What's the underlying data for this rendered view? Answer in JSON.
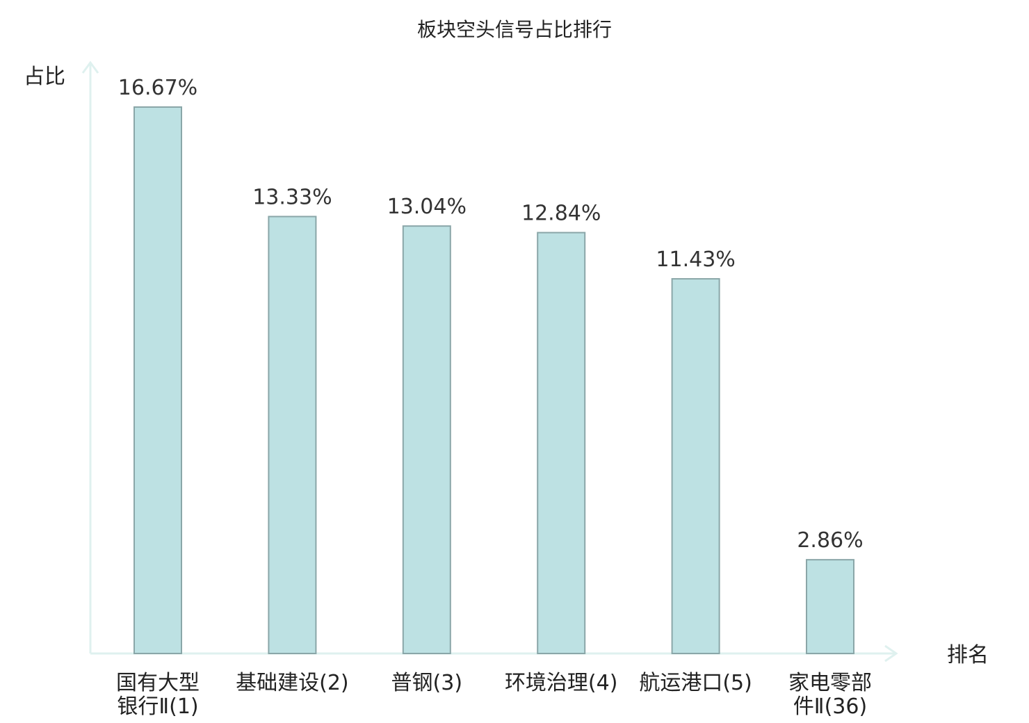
{
  "chart_data": {
    "type": "bar",
    "title": "板块空头信号占比排行",
    "ylabel": "占比",
    "xlabel": "排名",
    "categories": [
      [
        "国有大型",
        "银行Ⅱ(1)"
      ],
      [
        "基础建设(2)"
      ],
      [
        "普钢(3)"
      ],
      [
        "环境治理(4)"
      ],
      [
        "航运港口(5)"
      ],
      [
        "家电零部",
        "件Ⅱ(36)"
      ]
    ],
    "values": [
      16.67,
      13.33,
      13.04,
      12.84,
      11.43,
      2.86
    ],
    "value_labels": [
      "16.67%",
      "13.33%",
      "13.04%",
      "12.84%",
      "11.43%",
      "2.86%"
    ],
    "highlight_index": 5,
    "ylim": [
      0,
      18
    ],
    "grid": false
  },
  "colors": {
    "bar_fill": "#bde1e3",
    "bar_stroke": "#8aa6a8",
    "axis": "#dff1ef",
    "text": "#222222",
    "highlight_text": "#e0161b"
  }
}
